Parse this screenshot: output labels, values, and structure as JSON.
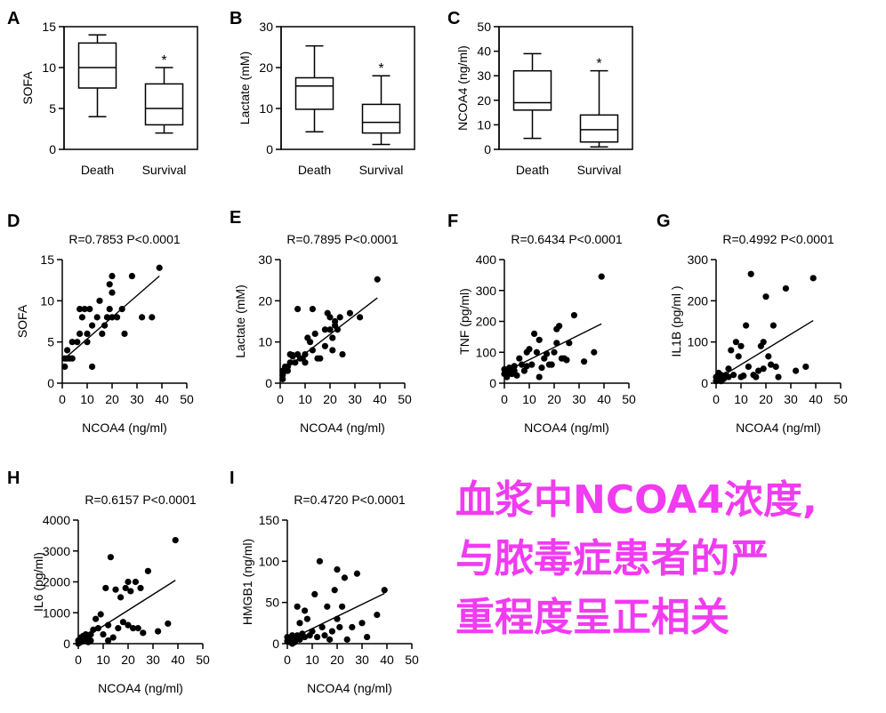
{
  "caption": {
    "color": "#f03bf0",
    "lines": [
      "血浆中NCOA4浓度,",
      "与脓毒症患者的严",
      "重程度呈正相关"
    ]
  },
  "chart_data": [
    {
      "panel": "A",
      "type": "box",
      "categories": [
        "Death",
        "Survival"
      ],
      "ylabel": "SOFA",
      "ylim": [
        0,
        15
      ],
      "yticks": [
        0,
        5,
        10,
        15
      ],
      "boxes": [
        {
          "min": 4,
          "q1": 7.5,
          "median": 10,
          "q3": 13,
          "max": 14
        },
        {
          "min": 2,
          "q1": 3,
          "median": 5,
          "q3": 8,
          "max": 10
        }
      ],
      "significance": [
        "",
        "*"
      ]
    },
    {
      "panel": "B",
      "type": "box",
      "categories": [
        "Death",
        "Survival"
      ],
      "ylabel": "Lactate (mM)",
      "ylim": [
        0,
        30
      ],
      "yticks": [
        0,
        10,
        20,
        30
      ],
      "boxes": [
        {
          "min": 4.3,
          "q1": 9.8,
          "median": 15.5,
          "q3": 17.5,
          "max": 25.3
        },
        {
          "min": 1.2,
          "q1": 4,
          "median": 6.6,
          "q3": 11,
          "max": 18
        }
      ],
      "significance": [
        "",
        "*"
      ]
    },
    {
      "panel": "C",
      "type": "box",
      "categories": [
        "Death",
        "Survival"
      ],
      "ylabel": "NCOA4 (ng/ml)",
      "ylim": [
        0,
        50
      ],
      "yticks": [
        0,
        10,
        20,
        30,
        40,
        50
      ],
      "boxes": [
        {
          "min": 4.5,
          "q1": 16,
          "median": 19,
          "q3": 32,
          "max": 39
        },
        {
          "min": 1,
          "q1": 3,
          "median": 8,
          "q3": 14,
          "max": 32
        }
      ],
      "significance": [
        "",
        "*"
      ]
    },
    {
      "panel": "D",
      "type": "scatter",
      "stat": "R=0.7853   P<0.0001",
      "xlabel": "NCOA4 (ng/ml)",
      "ylabel": "SOFA",
      "xlim": [
        0,
        50
      ],
      "xticks": [
        0,
        10,
        20,
        30,
        40,
        50
      ],
      "ylim": [
        0,
        15
      ],
      "yticks": [
        0,
        5,
        10,
        15
      ],
      "fit": [
        [
          1,
          3
        ],
        [
          39,
          13
        ]
      ],
      "points": [
        [
          1,
          3
        ],
        [
          1,
          2
        ],
        [
          2,
          4
        ],
        [
          2,
          3
        ],
        [
          3,
          3
        ],
        [
          4,
          3
        ],
        [
          4,
          5
        ],
        [
          6,
          5
        ],
        [
          7,
          6
        ],
        [
          7,
          9
        ],
        [
          8,
          8
        ],
        [
          9,
          9
        ],
        [
          10,
          5
        ],
        [
          10,
          6
        ],
        [
          11,
          9
        ],
        [
          12,
          7
        ],
        [
          12,
          2
        ],
        [
          14,
          8
        ],
        [
          15,
          10
        ],
        [
          16,
          6
        ],
        [
          17,
          7
        ],
        [
          18,
          8
        ],
        [
          19,
          9
        ],
        [
          19,
          12
        ],
        [
          20,
          11
        ],
        [
          20,
          13
        ],
        [
          20,
          8
        ],
        [
          22,
          8
        ],
        [
          24,
          9
        ],
        [
          25,
          6
        ],
        [
          28,
          13
        ],
        [
          32,
          8
        ],
        [
          36,
          8
        ],
        [
          39,
          14
        ]
      ]
    },
    {
      "panel": "E",
      "type": "scatter",
      "stat": "R=0.7895   P<0.0001",
      "xlabel": "NCOA4 (ng/ml)",
      "ylabel": "Lactate  (mM)",
      "xlim": [
        0,
        50
      ],
      "xticks": [
        0,
        10,
        20,
        30,
        40,
        50
      ],
      "ylim": [
        0,
        30
      ],
      "yticks": [
        0,
        10,
        20,
        30
      ],
      "fit": [
        [
          1,
          3
        ],
        [
          39,
          20.7
        ]
      ],
      "points": [
        [
          1,
          1
        ],
        [
          1,
          2
        ],
        [
          1,
          3
        ],
        [
          2,
          3
        ],
        [
          2,
          4
        ],
        [
          3,
          3
        ],
        [
          3,
          4
        ],
        [
          4,
          5
        ],
        [
          4,
          7
        ],
        [
          5,
          6.5
        ],
        [
          5,
          6.8
        ],
        [
          6,
          5
        ],
        [
          7,
          7
        ],
        [
          7,
          18
        ],
        [
          8,
          6
        ],
        [
          9,
          6
        ],
        [
          10,
          5
        ],
        [
          10,
          7
        ],
        [
          11,
          11
        ],
        [
          12,
          10
        ],
        [
          13,
          8
        ],
        [
          13,
          18
        ],
        [
          14,
          12
        ],
        [
          15,
          6
        ],
        [
          16,
          6
        ],
        [
          18,
          13
        ],
        [
          18,
          9
        ],
        [
          19,
          17
        ],
        [
          20,
          16
        ],
        [
          20,
          13
        ],
        [
          21,
          11
        ],
        [
          21,
          8
        ],
        [
          22,
          15
        ],
        [
          22,
          14
        ],
        [
          23,
          13
        ],
        [
          24,
          16
        ],
        [
          25,
          7
        ],
        [
          28,
          17
        ],
        [
          32,
          16
        ],
        [
          39,
          25.2
        ]
      ]
    },
    {
      "panel": "F",
      "type": "scatter",
      "stat": "R=0.6434   P<0.0001",
      "xlabel": "NCOA4 (ng/ml)",
      "ylabel": "TNF  (pg/ml)",
      "xlim": [
        0,
        50
      ],
      "xticks": [
        0,
        10,
        20,
        30,
        40,
        50
      ],
      "ylim": [
        0,
        400
      ],
      "yticks": [
        0,
        100,
        200,
        300,
        400
      ],
      "fit": [
        [
          1,
          40
        ],
        [
          39,
          192
        ]
      ],
      "points": [
        [
          0,
          30
        ],
        [
          0,
          45
        ],
        [
          1,
          20
        ],
        [
          1,
          35
        ],
        [
          2,
          40
        ],
        [
          2,
          50
        ],
        [
          3,
          30
        ],
        [
          3,
          45
        ],
        [
          4,
          40
        ],
        [
          4,
          55
        ],
        [
          5,
          25
        ],
        [
          6,
          80
        ],
        [
          7,
          60
        ],
        [
          8,
          40
        ],
        [
          9,
          55
        ],
        [
          9,
          100
        ],
        [
          10,
          110
        ],
        [
          11,
          60
        ],
        [
          12,
          160
        ],
        [
          13,
          100
        ],
        [
          14,
          140
        ],
        [
          14,
          20
        ],
        [
          15,
          50
        ],
        [
          16,
          80
        ],
        [
          17,
          95
        ],
        [
          18,
          60
        ],
        [
          19,
          60
        ],
        [
          20,
          100
        ],
        [
          21,
          130
        ],
        [
          21,
          175
        ],
        [
          22,
          185
        ],
        [
          23,
          80
        ],
        [
          24,
          80
        ],
        [
          25,
          75
        ],
        [
          26,
          130
        ],
        [
          28,
          220
        ],
        [
          32,
          70
        ],
        [
          36,
          100
        ],
        [
          39,
          345
        ]
      ]
    },
    {
      "panel": "G",
      "type": "scatter",
      "stat": "R=0.4992   P<0.0001",
      "xlabel": "NCOA4 (ng/ml)",
      "ylabel": "IL1B  (pg/ml )",
      "xlim": [
        0,
        50
      ],
      "xticks": [
        0,
        10,
        20,
        30,
        40,
        50
      ],
      "ylim": [
        0,
        300
      ],
      "yticks": [
        0,
        100,
        200,
        300
      ],
      "fit": [
        [
          1,
          12
        ],
        [
          39,
          152
        ]
      ],
      "points": [
        [
          0,
          5
        ],
        [
          0,
          15
        ],
        [
          1,
          10
        ],
        [
          1,
          25
        ],
        [
          2,
          5
        ],
        [
          2,
          20
        ],
        [
          3,
          10
        ],
        [
          3,
          15
        ],
        [
          4,
          20
        ],
        [
          5,
          35
        ],
        [
          5,
          15
        ],
        [
          6,
          80
        ],
        [
          7,
          20
        ],
        [
          8,
          100
        ],
        [
          9,
          65
        ],
        [
          10,
          90
        ],
        [
          10,
          15
        ],
        [
          11,
          18
        ],
        [
          12,
          140
        ],
        [
          13,
          40
        ],
        [
          14,
          265
        ],
        [
          15,
          20
        ],
        [
          16,
          15
        ],
        [
          17,
          30
        ],
        [
          18,
          90
        ],
        [
          19,
          100
        ],
        [
          19,
          35
        ],
        [
          20,
          210
        ],
        [
          21,
          65
        ],
        [
          22,
          45
        ],
        [
          23,
          140
        ],
        [
          24,
          40
        ],
        [
          25,
          15
        ],
        [
          28,
          230
        ],
        [
          32,
          30
        ],
        [
          36,
          40
        ],
        [
          39,
          255
        ]
      ]
    },
    {
      "panel": "H",
      "type": "scatter",
      "stat": "R=0.6157   P<0.0001",
      "xlabel": "NCOA4 (ng/ml)",
      "ylabel": "IL6 (pg/ml)",
      "xlim": [
        0,
        50
      ],
      "xticks": [
        0,
        10,
        20,
        30,
        40,
        50
      ],
      "ylim": [
        0,
        4000
      ],
      "yticks": [
        0,
        1000,
        2000,
        3000,
        4000
      ],
      "fit": [
        [
          1,
          110
        ],
        [
          39,
          2050
        ]
      ],
      "points": [
        [
          0,
          0
        ],
        [
          0,
          100
        ],
        [
          1,
          200
        ],
        [
          1,
          50
        ],
        [
          2,
          150
        ],
        [
          2,
          250
        ],
        [
          3,
          100
        ],
        [
          3,
          300
        ],
        [
          4,
          50
        ],
        [
          4,
          150
        ],
        [
          5,
          300
        ],
        [
          5,
          100
        ],
        [
          6,
          450
        ],
        [
          7,
          800
        ],
        [
          8,
          500
        ],
        [
          9,
          950
        ],
        [
          10,
          300
        ],
        [
          11,
          1800
        ],
        [
          12,
          100
        ],
        [
          12,
          600
        ],
        [
          13,
          2800
        ],
        [
          14,
          200
        ],
        [
          15,
          1750
        ],
        [
          16,
          500
        ],
        [
          17,
          1500
        ],
        [
          18,
          700
        ],
        [
          19,
          1800
        ],
        [
          20,
          2000
        ],
        [
          20,
          600
        ],
        [
          21,
          1700
        ],
        [
          22,
          500
        ],
        [
          23,
          2000
        ],
        [
          24,
          500
        ],
        [
          25,
          1800
        ],
        [
          26,
          350
        ],
        [
          28,
          2350
        ],
        [
          32,
          400
        ],
        [
          36,
          650
        ],
        [
          39,
          3350
        ]
      ]
    },
    {
      "panel": "I",
      "type": "scatter",
      "stat": "R=0.4720   P<0.0001",
      "xlabel": "NCOA4 (ng/ml)",
      "ylabel": "HMGB1 (ng/ml)",
      "xlim": [
        0,
        50
      ],
      "xticks": [
        0,
        10,
        20,
        30,
        40,
        50
      ],
      "ylim": [
        0,
        150
      ],
      "yticks": [
        0,
        50,
        100,
        150
      ],
      "fit": [
        [
          1,
          5
        ],
        [
          39,
          61
        ]
      ],
      "points": [
        [
          0,
          3
        ],
        [
          0,
          8
        ],
        [
          1,
          2
        ],
        [
          1,
          5
        ],
        [
          2,
          0
        ],
        [
          2,
          10
        ],
        [
          3,
          5
        ],
        [
          3,
          2
        ],
        [
          4,
          45
        ],
        [
          4,
          10
        ],
        [
          5,
          25
        ],
        [
          5,
          5
        ],
        [
          6,
          12
        ],
        [
          7,
          40
        ],
        [
          7,
          8
        ],
        [
          8,
          30
        ],
        [
          9,
          10
        ],
        [
          10,
          15
        ],
        [
          11,
          60
        ],
        [
          12,
          8
        ],
        [
          13,
          100
        ],
        [
          14,
          20
        ],
        [
          15,
          10
        ],
        [
          16,
          45
        ],
        [
          17,
          5
        ],
        [
          18,
          15
        ],
        [
          19,
          65
        ],
        [
          20,
          90
        ],
        [
          20,
          30
        ],
        [
          21,
          20
        ],
        [
          22,
          45
        ],
        [
          23,
          80
        ],
        [
          24,
          5
        ],
        [
          26,
          20
        ],
        [
          28,
          85
        ],
        [
          30,
          25
        ],
        [
          32,
          8
        ],
        [
          36,
          35
        ],
        [
          39,
          65
        ]
      ]
    }
  ]
}
